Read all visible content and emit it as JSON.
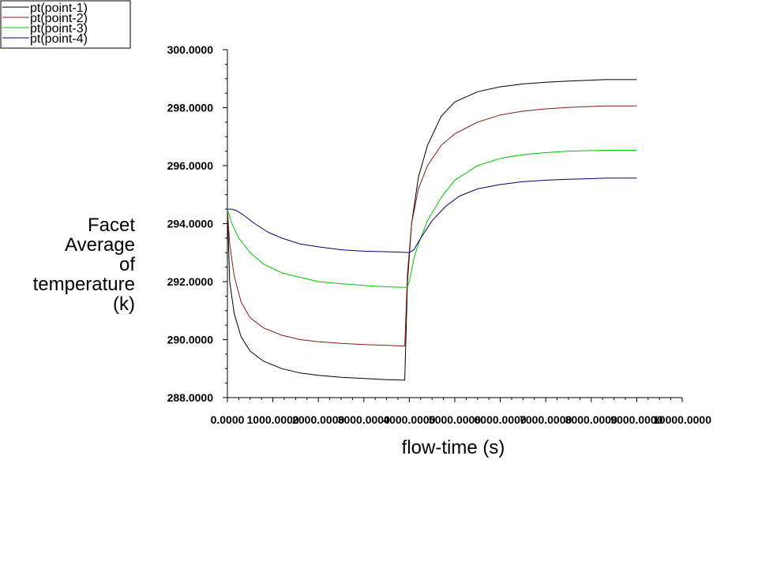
{
  "chart_data": {
    "type": "line",
    "title": "",
    "xlabel": "flow-time (s)",
    "ylabel_lines": [
      "Facet",
      "Average",
      "of",
      "temperature",
      "(k)"
    ],
    "xlim": [
      0,
      10000
    ],
    "ylim": [
      288,
      300
    ],
    "x_tick_values": [
      0,
      1000,
      2000,
      3000,
      4000,
      5000,
      6000,
      7000,
      8000,
      9000,
      10000
    ],
    "x_tick_labels": [
      "0.0000",
      "1000.0000",
      "2000.0000",
      "3000.0000",
      "4000.0000",
      "5000.0000",
      "6000.0000",
      "7000.0000",
      "8000.0000",
      "9000.0000",
      "10000.0000"
    ],
    "y_tick_values": [
      288,
      290,
      292,
      294,
      296,
      298,
      300
    ],
    "y_tick_labels": [
      "288.0000",
      "290.0000",
      "292.0000",
      "294.0000",
      "296.0000",
      "298.0000",
      "300.0000"
    ],
    "legend_position": "top-left",
    "grid": false,
    "series": [
      {
        "name": "pt(point-1)",
        "color": "#000000",
        "x": [
          0,
          50,
          150,
          300,
          500,
          800,
          1200,
          1600,
          2000,
          2500,
          3000,
          3500,
          3900,
          3910,
          3960,
          4050,
          4200,
          4400,
          4700,
          5000,
          5500,
          6000,
          6500,
          7000,
          7500,
          8000,
          8300,
          9000
        ],
        "y": [
          294.5,
          292.0,
          290.9,
          290.1,
          289.6,
          289.25,
          289.0,
          288.85,
          288.77,
          288.7,
          288.66,
          288.62,
          288.6,
          289.2,
          292.0,
          294.0,
          295.6,
          296.7,
          297.7,
          298.2,
          298.55,
          298.72,
          298.82,
          298.88,
          298.92,
          298.95,
          298.97,
          298.97
        ]
      },
      {
        "name": "pt(point-2)",
        "color": "#8b1a1a",
        "x": [
          0,
          50,
          150,
          300,
          500,
          800,
          1200,
          1600,
          2000,
          2500,
          3000,
          3500,
          3900,
          3910,
          3960,
          4050,
          4200,
          4400,
          4700,
          5000,
          5500,
          6000,
          6500,
          7000,
          7500,
          8000,
          8300,
          9000
        ],
        "y": [
          294.5,
          293.3,
          292.2,
          291.3,
          290.75,
          290.4,
          290.15,
          290.0,
          289.93,
          289.87,
          289.83,
          289.8,
          289.78,
          290.2,
          292.3,
          294.0,
          295.2,
          296.0,
          296.7,
          297.1,
          297.5,
          297.75,
          297.88,
          297.96,
          298.01,
          298.04,
          298.06,
          298.06
        ]
      },
      {
        "name": "pt(point-3)",
        "color": "#00c800",
        "x": [
          0,
          100,
          250,
          500,
          800,
          1200,
          1600,
          2000,
          2500,
          3000,
          3500,
          3950,
          4000,
          4050,
          4100,
          4200,
          4400,
          4700,
          5000,
          5500,
          6000,
          6500,
          7000,
          7500,
          8000,
          8300,
          9000
        ],
        "y": [
          294.5,
          294.0,
          293.5,
          293.0,
          292.6,
          292.3,
          292.15,
          292.0,
          291.93,
          291.87,
          291.82,
          291.8,
          292.0,
          292.4,
          292.8,
          293.3,
          294.1,
          294.9,
          295.5,
          296.0,
          296.25,
          296.38,
          296.45,
          296.5,
          296.52,
          296.53,
          296.53
        ]
      },
      {
        "name": "pt(point-4)",
        "color": "#000080",
        "x": [
          0,
          100,
          200,
          350,
          600,
          900,
          1200,
          1600,
          2000,
          2500,
          3000,
          3500,
          3900,
          4000,
          4100,
          4250,
          4500,
          4800,
          5100,
          5500,
          6000,
          6500,
          7000,
          7500,
          8000,
          8300,
          9000
        ],
        "y": [
          294.5,
          294.5,
          294.45,
          294.3,
          294.0,
          293.7,
          293.5,
          293.3,
          293.2,
          293.1,
          293.05,
          293.03,
          293.01,
          293.0,
          293.1,
          293.5,
          294.1,
          294.6,
          294.95,
          295.2,
          295.35,
          295.45,
          295.5,
          295.53,
          295.55,
          295.57,
          295.57
        ]
      }
    ]
  }
}
